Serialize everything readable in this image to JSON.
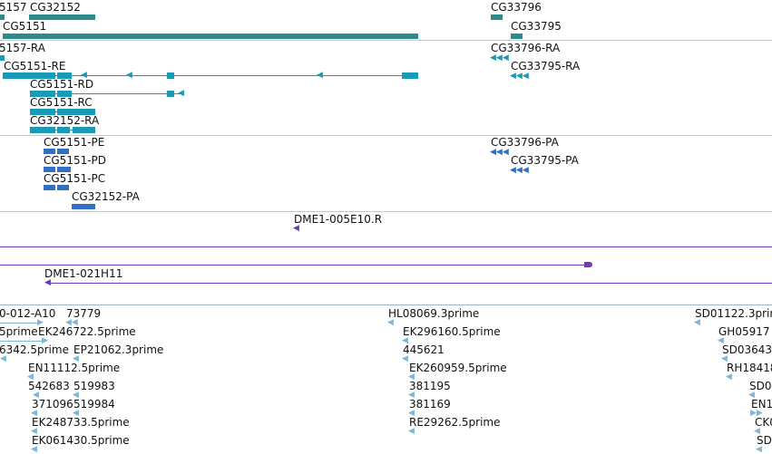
{
  "colors": {
    "gene": "#2e8b8b",
    "transcript": "#1a9bb5",
    "protein": "#2f6fc4",
    "clone": "#6a3db0",
    "est": "#7cb6d8",
    "separator": "#c8c8c8",
    "separator_clone": "#9ab3d0"
  },
  "tracks": {
    "genes": {
      "labels": [
        "5157",
        "CG32152",
        "CG5151",
        "CG33796",
        "CG33795"
      ]
    },
    "transcripts": {
      "labels": [
        "5157-RA",
        "CG5151-RE",
        "CG5151-RD",
        "CG5151-RC",
        "CG32152-RA",
        "CG33796-RA",
        "CG33795-RA"
      ]
    },
    "proteins": {
      "labels": [
        "CG5151-PE",
        "CG5151-PD",
        "CG5151-PC",
        "CG32152-PA",
        "CG33796-PA",
        "CG33795-PA"
      ]
    },
    "clones": {
      "labels": [
        "DME1-005E10.R",
        "DME1-021H11"
      ]
    },
    "ests": {
      "labels": [
        "0-012-A10",
        "73779",
        "5prime",
        "EK246722.5prime",
        "6342.5prime",
        "EP21062.3prime",
        "EN11112.5prime",
        "542683",
        "519983",
        "371096",
        "519984",
        "EK248733.5prime",
        "EK061430.5prime",
        "HL08069.3prime",
        "EK296160.5prime",
        "445621",
        "EK260959.5prime",
        "381195",
        "381169",
        "RE29262.5prime",
        "SD01122.3prime",
        "GH05917",
        "SD03643",
        "RH18418",
        "SD0",
        "EN1",
        "CK0",
        "SD"
      ]
    }
  }
}
